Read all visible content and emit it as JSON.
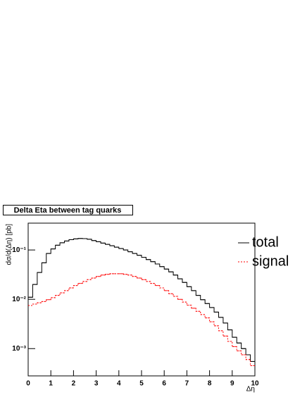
{
  "chart_data": {
    "type": "histogram",
    "title": "Delta Eta between tag quarks",
    "xlabel": "Δη",
    "ylabel": "dσ/d(Δη) [pb]",
    "log_y": true,
    "legend": "upper right",
    "bins": [
      0,
      0.2,
      0.4,
      0.6,
      0.8,
      1,
      1.2,
      1.4,
      1.6,
      1.8,
      2,
      2.2,
      2.4,
      2.6,
      2.8,
      3,
      3.2,
      3.4,
      3.6,
      3.8,
      4,
      4.2,
      4.4,
      4.6,
      4.8,
      5,
      5.2,
      5.4,
      5.6,
      5.8,
      6,
      6.2,
      6.4,
      6.6,
      6.8,
      7,
      7.2,
      7.4,
      7.6,
      7.8,
      8,
      8.2,
      8.4,
      8.6,
      8.8,
      9,
      9.2,
      9.4,
      9.6,
      9.8,
      10
    ],
    "series": [
      {
        "name": "total",
        "color": "#000000",
        "dash": false,
        "values": [
          0.011,
          0.02,
          0.035,
          0.055,
          0.085,
          0.105,
          0.125,
          0.14,
          0.152,
          0.162,
          0.168,
          0.171,
          0.17,
          0.165,
          0.155,
          0.147,
          0.138,
          0.13,
          0.122,
          0.114,
          0.107,
          0.1,
          0.092,
          0.085,
          0.078,
          0.071,
          0.064,
          0.058,
          0.052,
          0.046,
          0.041,
          0.036,
          0.031,
          0.026,
          0.022,
          0.018,
          0.015,
          0.012,
          0.0098,
          0.0082,
          0.0068,
          0.0055,
          0.0043,
          0.0033,
          0.0024,
          0.0017,
          0.0013,
          0.001,
          0.00075,
          0.00055
        ]
      },
      {
        "name": "signal",
        "color": "#ff0000",
        "dash": true,
        "values": [
          0.0075,
          0.008,
          0.0085,
          0.009,
          0.0098,
          0.0108,
          0.012,
          0.0135,
          0.015,
          0.017,
          0.019,
          0.021,
          0.023,
          0.025,
          0.027,
          0.029,
          0.031,
          0.032,
          0.033,
          0.033,
          0.033,
          0.032,
          0.031,
          0.029,
          0.027,
          0.025,
          0.023,
          0.021,
          0.019,
          0.017,
          0.015,
          0.013,
          0.0115,
          0.01,
          0.0088,
          0.0076,
          0.0066,
          0.0057,
          0.0049,
          0.0042,
          0.0035,
          0.0029,
          0.0023,
          0.0018,
          0.0014,
          0.0011,
          0.0009,
          0.00075,
          0.0006,
          0.00045
        ]
      }
    ],
    "xlim": [
      0,
      10
    ],
    "xticks": [
      0,
      1,
      2,
      3,
      4,
      5,
      6,
      7,
      8,
      9,
      10
    ],
    "ylim": [
      0.00028,
      0.35
    ],
    "yticks": [
      {
        "value": 0.001,
        "label": "10⁻³"
      },
      {
        "value": 0.01,
        "label": "10⁻²"
      },
      {
        "value": 0.1,
        "label": "10⁻¹"
      }
    ]
  }
}
